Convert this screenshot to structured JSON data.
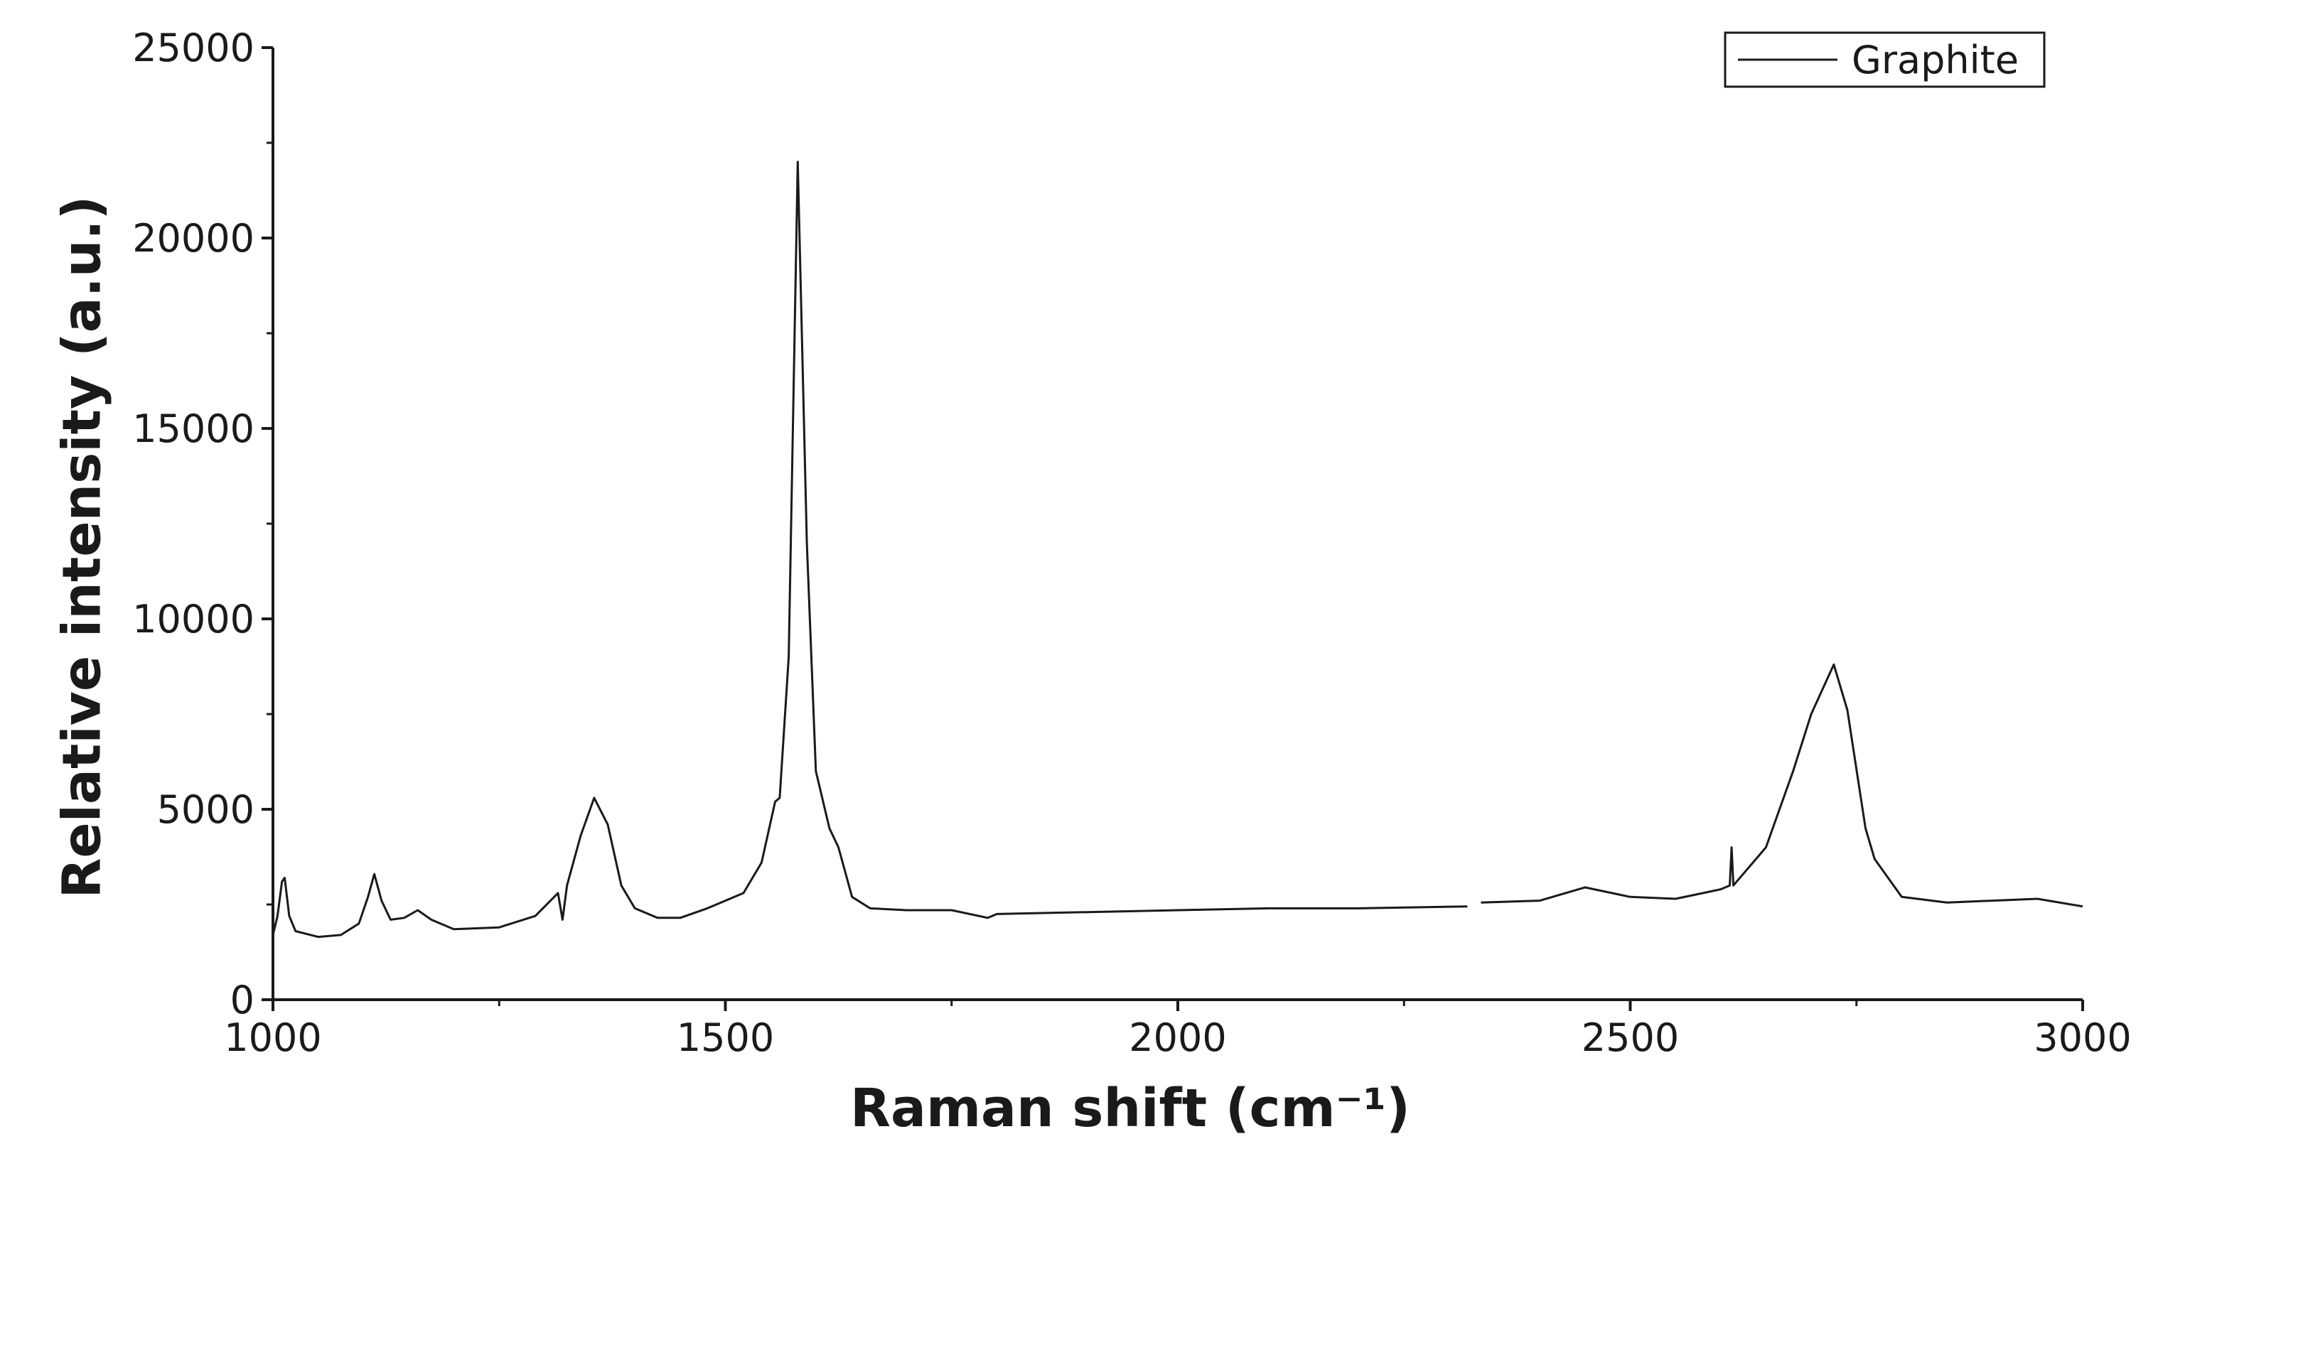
{
  "chart_data": {
    "type": "line",
    "xlabel": "Raman shift (cm⁻¹)",
    "ylabel": "Relative intensity (a.u.)",
    "xlim": [
      1000,
      3000
    ],
    "ylim": [
      0,
      25000
    ],
    "xticks": [
      1000,
      1500,
      2000,
      2500,
      3000
    ],
    "yticks": [
      0,
      5000,
      10000,
      15000,
      20000,
      25000
    ],
    "xminorticks": [
      1250,
      1750,
      2250,
      2750
    ],
    "yminorticks": [
      2500,
      7500,
      12500,
      17500,
      22500
    ],
    "legend": "upper right",
    "x": [
      1000,
      1005,
      1010,
      1013,
      1018,
      1025,
      1050,
      1075,
      1095,
      1105,
      1112,
      1120,
      1130,
      1145,
      1160,
      1175,
      1200,
      1250,
      1290,
      1315,
      1320,
      1325,
      1340,
      1355,
      1370,
      1385,
      1400,
      1425,
      1450,
      1480,
      1520,
      1540,
      1555,
      1560,
      1570,
      1580,
      1590,
      1600,
      1615,
      1625,
      1640,
      1660,
      1700,
      1750,
      1790,
      1800,
      1900,
      2000,
      2100,
      2200,
      2320,
      2327,
      2335,
      2400,
      2450,
      2500,
      2550,
      2600,
      2610,
      2612,
      2614,
      2650,
      2680,
      2700,
      2725,
      2740,
      2760,
      2770,
      2800,
      2850,
      2900,
      2950,
      3000
    ],
    "series": [
      {
        "name": "Graphite",
        "color": "#1a1a1a",
        "values": [
          1700,
          2200,
          3100,
          3200,
          2200,
          1800,
          1650,
          1700,
          2000,
          2700,
          3300,
          2600,
          2100,
          2150,
          2350,
          2100,
          1850,
          1900,
          2200,
          2800,
          2100,
          3000,
          4300,
          5300,
          4600,
          3000,
          2400,
          2150,
          2150,
          2400,
          2800,
          3600,
          5200,
          5300,
          9000,
          22000,
          12000,
          6000,
          4500,
          4000,
          2700,
          2400,
          2350,
          2350,
          2150,
          2250,
          2300,
          2350,
          2400,
          2400,
          2450,
          null,
          2550,
          2600,
          2950,
          2700,
          2650,
          2900,
          3000,
          4000,
          3000,
          4000,
          6000,
          7500,
          8800,
          7600,
          4500,
          3700,
          2700,
          2550,
          2600,
          2650,
          2450
        ]
      }
    ]
  }
}
